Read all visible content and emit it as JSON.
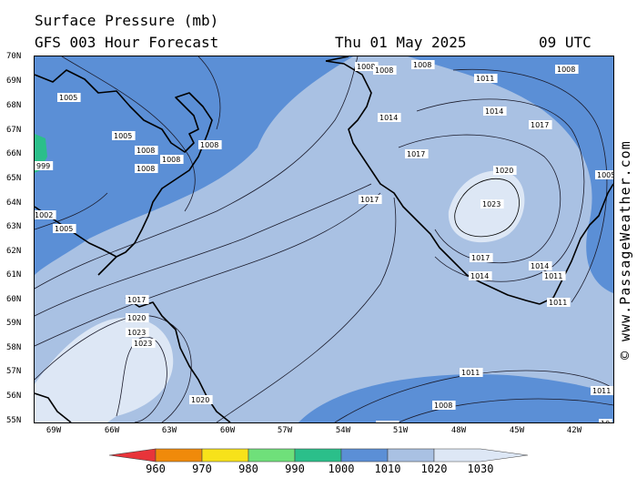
{
  "header": {
    "title": "Surface Pressure (mb)",
    "subtitle": "GFS 003 Hour Forecast",
    "date": "Thu 01 May 2025",
    "time": "09 UTC"
  },
  "credit": "© www.PassageWeather.com",
  "axes": {
    "lat_labels": [
      "70N",
      "69N",
      "68N",
      "67N",
      "66N",
      "65N",
      "64N",
      "63N",
      "62N",
      "61N",
      "60N",
      "59N",
      "58N",
      "57N",
      "56N",
      "55N"
    ],
    "lon_labels": [
      "69W",
      "66W",
      "63W",
      "60W",
      "57W",
      "54W",
      "51W",
      "48W",
      "45W",
      "42W"
    ]
  },
  "isobar_labels": [
    {
      "text": "1005"
    },
    {
      "text": "1005"
    },
    {
      "text": "1008"
    },
    {
      "text": "1008"
    },
    {
      "text": "1008"
    },
    {
      "text": "1008"
    },
    {
      "text": "1005"
    },
    {
      "text": "1002"
    },
    {
      "text": "1017"
    },
    {
      "text": "1020"
    },
    {
      "text": "1023"
    },
    {
      "text": "1023"
    },
    {
      "text": "1020"
    },
    {
      "text": "1008"
    },
    {
      "text": "1008"
    },
    {
      "text": "1008"
    },
    {
      "text": "1011"
    },
    {
      "text": "1014"
    },
    {
      "text": "1014"
    },
    {
      "text": "1017"
    },
    {
      "text": "1017"
    },
    {
      "text": "1020"
    },
    {
      "text": "1023"
    },
    {
      "text": "1017"
    },
    {
      "text": "1017"
    },
    {
      "text": "1014"
    },
    {
      "text": "1014"
    },
    {
      "text": "1011"
    },
    {
      "text": "1011"
    },
    {
      "text": "1008"
    },
    {
      "text": "1008"
    },
    {
      "text": "1011"
    },
    {
      "text": "1008"
    },
    {
      "text": "1011"
    },
    {
      "text": "10"
    },
    {
      "text": "1005"
    },
    {
      "text": "999"
    }
  ],
  "colorbar": {
    "ticks": [
      "960",
      "970",
      "980",
      "990",
      "1000",
      "1010",
      "1020",
      "1030"
    ],
    "colors": [
      "#e8343a",
      "#f08a0a",
      "#f7e21a",
      "#6fe07a",
      "#2bbf8a",
      "#5b8fd6",
      "#a9c1e3",
      "#dde7f5"
    ]
  },
  "colors": {
    "band_1000_1010": "#5b8fd6",
    "band_1010_1020": "#a9c1e3",
    "band_1020_1030": "#dde7f5",
    "land_outline": "#000000"
  }
}
